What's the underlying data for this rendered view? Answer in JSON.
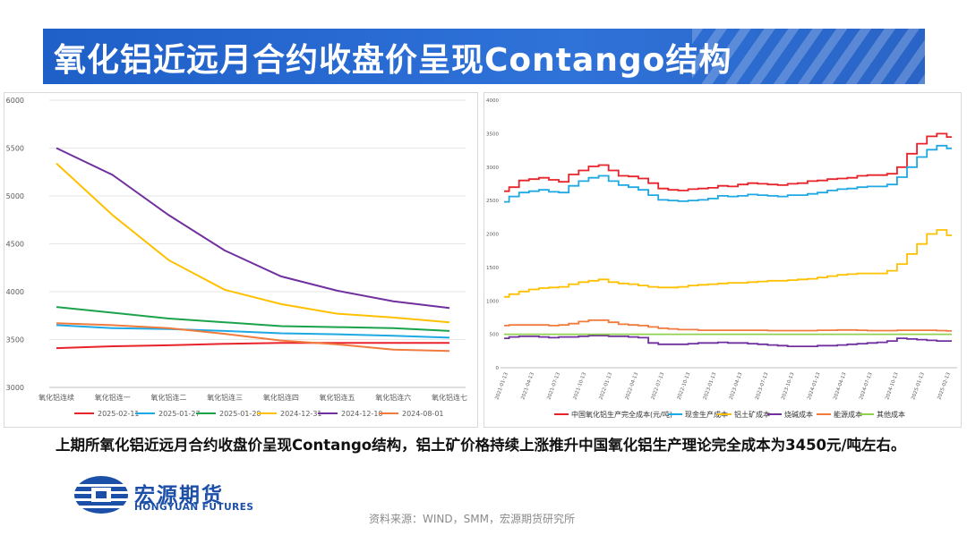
{
  "header": {
    "title": "氧化铝近远月合约收盘价呈现Contango结构"
  },
  "summary": {
    "text": "上期所氧化铝近远月合约收盘价呈现Contango结构，铝土矿价格持续上涨推升中国氧化铝生产理论完全成本为3450元/吨左右。"
  },
  "logo": {
    "name_cn": "宏源期货",
    "name_en": "HONGYUAN FUTURES"
  },
  "source": {
    "text": "资料来源：WIND，SMM，宏源期货研究所"
  },
  "colors": {
    "red": "#e8232a",
    "blue": "#1ea8e4",
    "green": "#1ba34b",
    "yellow": "#ffc000",
    "purple": "#7030a0",
    "orange": "#f07b3c"
  },
  "chart_data": [
    {
      "type": "line",
      "title": "",
      "categories": [
        "氧化铝连续",
        "氧化铝连一",
        "氧化铝连二",
        "氧化铝连三",
        "氧化铝连四",
        "氧化铝连五",
        "氧化铝连六",
        "氧化铝连七"
      ],
      "ylim": [
        3000,
        6000
      ],
      "yticks": [
        3000,
        3500,
        4000,
        4500,
        5000,
        5500,
        6000
      ],
      "series": [
        {
          "name": "2025-02-11",
          "color": "#e8232a",
          "values": [
            3410,
            3430,
            3440,
            3455,
            3465,
            3465,
            3465,
            3465
          ]
        },
        {
          "name": "2025-01-27",
          "color": "#1ea8e4",
          "values": [
            3650,
            3620,
            3610,
            3590,
            3565,
            3555,
            3540,
            3520
          ]
        },
        {
          "name": "2025-01-20",
          "color": "#1ba34b",
          "values": [
            3840,
            3780,
            3720,
            3680,
            3640,
            3630,
            3620,
            3590
          ]
        },
        {
          "name": "2024-12-31",
          "color": "#ffc000",
          "values": [
            5340,
            4800,
            4330,
            4020,
            3870,
            3770,
            3730,
            3680
          ]
        },
        {
          "name": "2024-12-10",
          "color": "#7030a0",
          "values": [
            5500,
            5220,
            4800,
            4430,
            4160,
            4010,
            3900,
            3830
          ]
        },
        {
          "name": "2024-08-01",
          "color": "#f07b3c",
          "values": [
            3670,
            3650,
            3620,
            3560,
            3490,
            3450,
            3395,
            3380
          ]
        }
      ]
    },
    {
      "type": "line",
      "title": "",
      "x_range": [
        "2021-01",
        "2025-02"
      ],
      "ylim": [
        0,
        4000
      ],
      "yticks": [
        0,
        500,
        1000,
        1500,
        2000,
        2500,
        3000,
        3500,
        4000
      ],
      "xticks": [
        "2021-01-13",
        "2021-04-13",
        "2021-07-13",
        "2021-10-13",
        "2022-01-13",
        "2022-04-13",
        "2022-07-13",
        "2022-10-13",
        "2023-01-13",
        "2023-04-13",
        "2023-07-13",
        "2023-10-13",
        "2024-01-13",
        "2024-04-13",
        "2024-07-13",
        "2024-10-13",
        "2025-01-13",
        "2025-02-13"
      ],
      "series": [
        {
          "name": "中国氧化铝生产完全成本(元/吨)",
          "color": "#e8232a",
          "values": [
            2640,
            2700,
            2800,
            2820,
            2840,
            2810,
            2780,
            2890,
            2950,
            3010,
            3030,
            2950,
            2870,
            2860,
            2830,
            2760,
            2680,
            2660,
            2650,
            2670,
            2680,
            2690,
            2720,
            2710,
            2740,
            2760,
            2750,
            2740,
            2730,
            2750,
            2760,
            2790,
            2800,
            2820,
            2830,
            2840,
            2870,
            2880,
            2880,
            2900,
            3000,
            3200,
            3350,
            3460,
            3500,
            3450
          ]
        },
        {
          "name": "现金生产成本",
          "color": "#1ea8e4",
          "values": [
            2480,
            2560,
            2620,
            2640,
            2660,
            2630,
            2620,
            2720,
            2790,
            2840,
            2870,
            2790,
            2730,
            2700,
            2660,
            2580,
            2510,
            2500,
            2490,
            2500,
            2510,
            2530,
            2570,
            2560,
            2570,
            2590,
            2580,
            2570,
            2560,
            2580,
            2580,
            2600,
            2620,
            2650,
            2670,
            2680,
            2700,
            2710,
            2710,
            2740,
            2850,
            3000,
            3150,
            3260,
            3320,
            3280
          ]
        },
        {
          "name": "铝土矿成本",
          "color": "#ffc000",
          "values": [
            1060,
            1100,
            1140,
            1170,
            1190,
            1200,
            1210,
            1250,
            1280,
            1300,
            1320,
            1280,
            1260,
            1250,
            1230,
            1210,
            1200,
            1200,
            1210,
            1230,
            1240,
            1250,
            1260,
            1270,
            1270,
            1280,
            1290,
            1300,
            1300,
            1310,
            1320,
            1330,
            1350,
            1370,
            1390,
            1400,
            1410,
            1410,
            1410,
            1450,
            1550,
            1700,
            1850,
            2000,
            2060,
            1980
          ]
        },
        {
          "name": "烧碱成本",
          "color": "#7030a0",
          "values": [
            440,
            460,
            470,
            470,
            460,
            450,
            460,
            460,
            470,
            480,
            480,
            470,
            470,
            460,
            450,
            370,
            350,
            350,
            350,
            360,
            370,
            370,
            380,
            370,
            370,
            360,
            350,
            340,
            330,
            320,
            320,
            320,
            330,
            330,
            340,
            350,
            360,
            370,
            380,
            400,
            440,
            430,
            420,
            410,
            400,
            400
          ]
        },
        {
          "name": "能源成本",
          "color": "#f07b3c",
          "values": [
            630,
            640,
            640,
            640,
            640,
            630,
            640,
            660,
            690,
            710,
            710,
            680,
            650,
            640,
            630,
            610,
            590,
            580,
            570,
            570,
            560,
            560,
            560,
            560,
            560,
            560,
            560,
            555,
            555,
            555,
            555,
            555,
            560,
            560,
            565,
            565,
            560,
            555,
            555,
            555,
            560,
            560,
            560,
            560,
            555,
            550
          ]
        },
        {
          "name": "其他成本",
          "color": "#92d050",
          "values": [
            500,
            500,
            500,
            500,
            500,
            500,
            500,
            500,
            500,
            500,
            500,
            500,
            500,
            500,
            500,
            500,
            500,
            500,
            500,
            500,
            500,
            500,
            500,
            500,
            500,
            500,
            500,
            500,
            500,
            500,
            500,
            500,
            500,
            500,
            500,
            500,
            500,
            500,
            500,
            500,
            500,
            500,
            500,
            500,
            500,
            500
          ]
        }
      ]
    }
  ]
}
